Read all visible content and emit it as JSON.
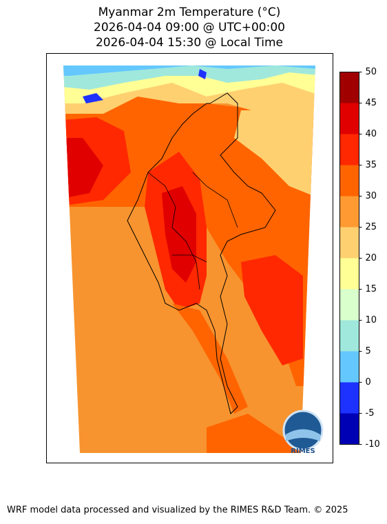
{
  "header": {
    "title_lines": [
      "Myanmar 2m Temperature (°C)",
      "2026-04-04 09:00 @ UTC+00:00",
      "2026-04-04 15:30 @ Local Time"
    ]
  },
  "colorbar": {
    "clim": [
      -10,
      50
    ],
    "ticks": [
      -10,
      -5,
      0,
      5,
      10,
      15,
      20,
      25,
      30,
      35,
      40,
      45,
      50
    ],
    "colors": [
      "#0000b4",
      "#1e32ff",
      "#64c8ff",
      "#a0e8dc",
      "#d8ffcc",
      "#ffff96",
      "#ffd070",
      "#ff9a32",
      "#ff6400",
      "#ff2800",
      "#e00000",
      "#a00000"
    ]
  },
  "logo": {
    "text": "RIMES"
  },
  "footer": {
    "text": "WRF model data processed and visualized by the RIMES R&D Team. © 2025"
  }
}
